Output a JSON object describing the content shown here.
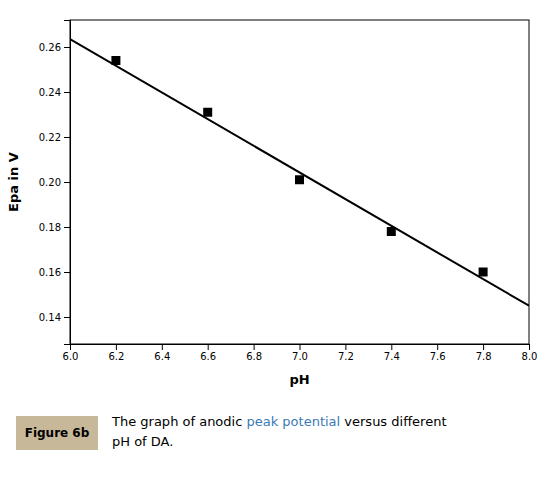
{
  "chart_data": {
    "type": "scatter",
    "xlabel": "pH",
    "ylabel": "Epa in V",
    "xlim": [
      6.0,
      8.0
    ],
    "ylim": [
      0.128,
      0.272
    ],
    "xticks": [
      {
        "value": 6.0,
        "label": "6.0"
      },
      6.2,
      6.4,
      6.6,
      6.8,
      {
        "value": 7.0,
        "label": "7.0"
      },
      7.2,
      7.4,
      7.6,
      7.8,
      {
        "value": 8.0,
        "label": "8.0"
      }
    ],
    "yticks": [
      0.14,
      0.16,
      0.18,
      {
        "value": 0.2,
        "label": "0.20"
      },
      0.22,
      0.24,
      0.26
    ],
    "grid": false,
    "series": [
      {
        "type": "scatter",
        "marker": "square",
        "color": "#000000",
        "x": [
          6.2,
          6.6,
          7.0,
          7.4,
          7.8
        ],
        "values": [
          0.254,
          0.231,
          0.201,
          0.178,
          0.16
        ]
      },
      {
        "type": "line",
        "color": "#000000",
        "x": [
          6.0,
          8.0
        ],
        "values": [
          0.2635,
          0.145
        ]
      }
    ],
    "annotations": [
      {
        "text": "Figure 6b",
        "color": "#c8b89a"
      },
      {
        "parts": [
          {
            "text": "The graph of anodic ",
            "color": "#000000"
          },
          {
            "text": "peak potential",
            "color": "#3a7ab5"
          },
          {
            "text": " versus different",
            "color": "#000000"
          }
        ]
      },
      {
        "parts": [
          {
            "text": "pH of DA.",
            "color": "#000000"
          }
        ]
      }
    ]
  }
}
